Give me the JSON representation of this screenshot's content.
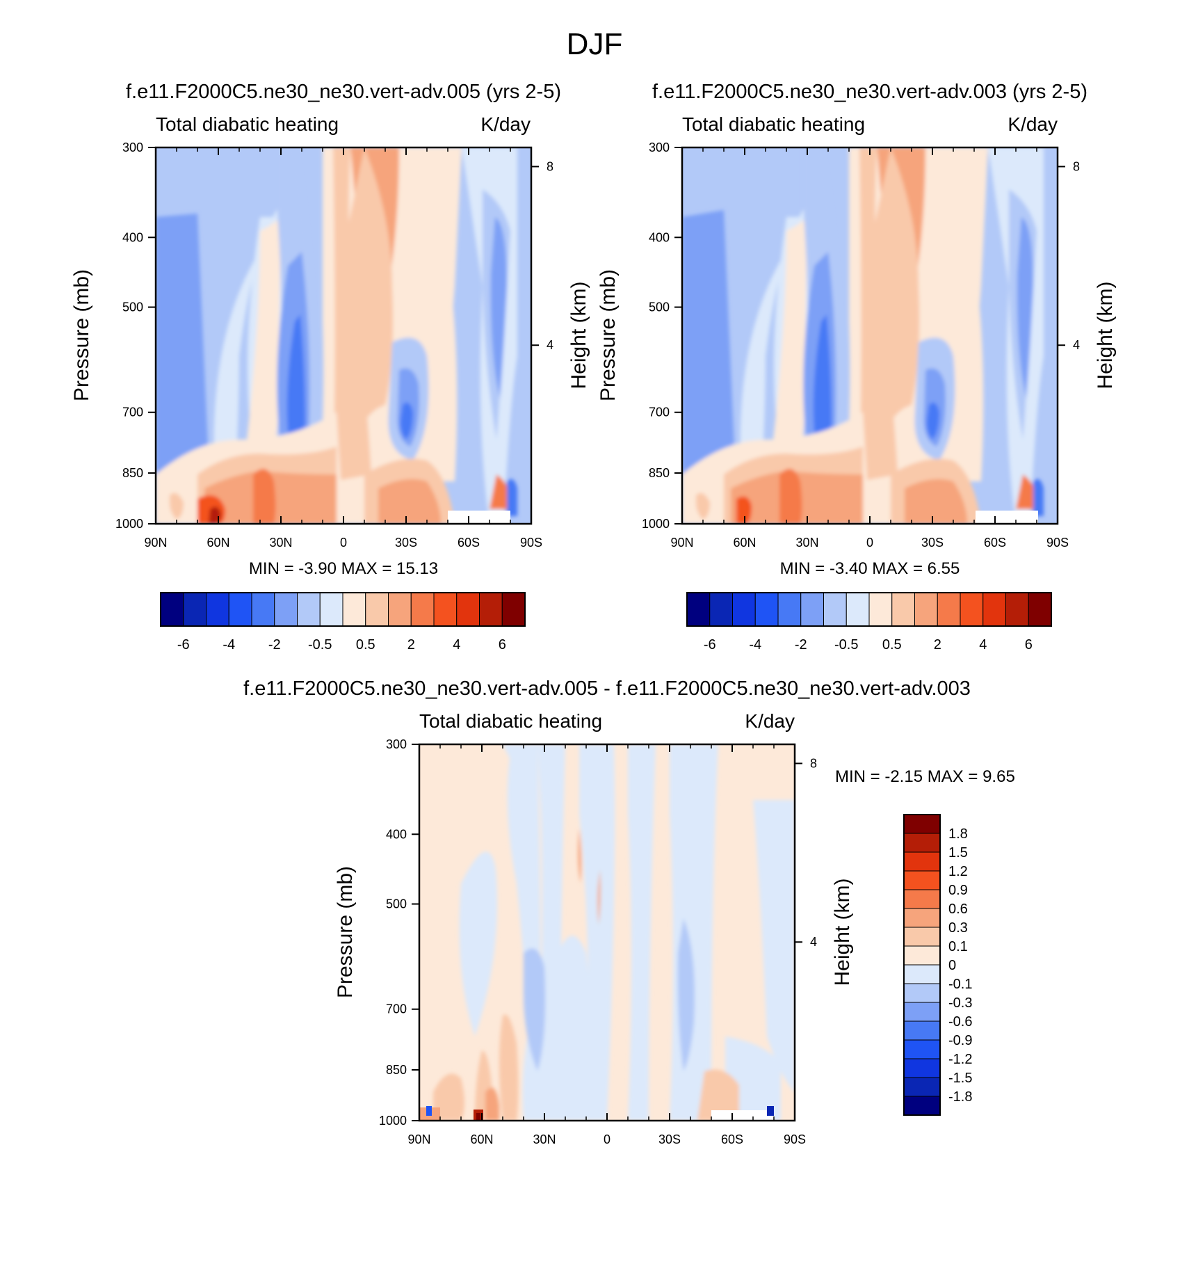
{
  "figure_title": "DJF",
  "panels": [
    {
      "title": "f.e11.F2000C5.ne30_ne30.vert-adv.005 (yrs 2-5)",
      "left_string": "Total diabatic heating",
      "right_string": "K/day",
      "ylabel": "Pressure (mb)",
      "ylabel_right": "Height (km)",
      "stats": "MIN =  -3.90  MAX =  15.13",
      "colorbar": "horizontal"
    },
    {
      "title": "f.e11.F2000C5.ne30_ne30.vert-adv.003 (yrs 2-5)",
      "left_string": "Total diabatic heating",
      "right_string": "K/day",
      "ylabel": "Pressure (mb)",
      "ylabel_right": "Height (km)",
      "stats": "MIN =  -3.40  MAX =   6.55",
      "colorbar": "horizontal"
    },
    {
      "title": "f.e11.F2000C5.ne30_ne30.vert-adv.005 - f.e11.F2000C5.ne30_ne30.vert-adv.003",
      "left_string": "Total diabatic heating",
      "right_string": "K/day",
      "ylabel": "Pressure (mb)",
      "ylabel_right": "Height (km)",
      "stats": "MIN =  -2.15  MAX =   9.65",
      "colorbar": "vertical"
    }
  ],
  "axes": {
    "x_ticks": [
      "90N",
      "60N",
      "30N",
      "0",
      "30S",
      "60S",
      "90S"
    ],
    "x_values": [
      90,
      60,
      30,
      0,
      -30,
      -60,
      -90
    ],
    "y_ticks": [
      "300",
      "400",
      "500",
      "700",
      "850",
      "1000"
    ],
    "y_values": [
      300,
      400,
      500,
      700,
      850,
      1000
    ],
    "y_scale": "log",
    "y_reversed": true,
    "height_ticks": [
      "8",
      "4"
    ],
    "height_values": [
      8,
      4
    ]
  },
  "colorbars": {
    "abs": {
      "colors": [
        "#00007f",
        "#0a26b4",
        "#1036e0",
        "#1f54f5",
        "#4779f5",
        "#7da0f6",
        "#b2c9f8",
        "#dce9fb",
        "#fde9d9",
        "#f9c9aa",
        "#f6a47c",
        "#f57a4a",
        "#f4521f",
        "#e2340d",
        "#b41e07",
        "#7f0000"
      ],
      "labels": [
        "-6",
        "-4",
        "-2",
        "-0.5",
        "0.5",
        "2",
        "4",
        "6"
      ]
    },
    "diff": {
      "colors": [
        "#7f0000",
        "#b41e07",
        "#e2340d",
        "#f4521f",
        "#f57a4a",
        "#f6a47c",
        "#f9c9aa",
        "#fde9d9",
        "#dce9fb",
        "#b2c9f8",
        "#7da0f6",
        "#4779f5",
        "#1f54f5",
        "#1036e0",
        "#0a26b4",
        "#00007f"
      ],
      "labels": [
        "1.8",
        "1.5",
        "1.2",
        "0.9",
        "0.6",
        "0.3",
        "0.1",
        "0",
        "-0.1",
        "-0.3",
        "-0.6",
        "-0.9",
        "-1.2",
        "-1.5",
        "-1.8"
      ]
    }
  },
  "chart_data": [
    {
      "type": "heatmap",
      "title": "f.e11.F2000C5.ne30_ne30.vert-adv.005 (yrs 2-5)",
      "variable": "Total diabatic heating",
      "units": "K/day",
      "season": "DJF",
      "x": "latitude 90N to 90S",
      "y": "pressure 300 to 1000 mb (log)",
      "min": -3.9,
      "max": 15.13,
      "levels": [
        -6,
        -5,
        -4,
        -3,
        -2,
        -1,
        -0.5,
        0,
        0.5,
        1,
        2,
        3,
        4,
        5,
        6
      ]
    },
    {
      "type": "heatmap",
      "title": "f.e11.F2000C5.ne30_ne30.vert-adv.003 (yrs 2-5)",
      "variable": "Total diabatic heating",
      "units": "K/day",
      "season": "DJF",
      "x": "latitude 90N to 90S",
      "y": "pressure 300 to 1000 mb (log)",
      "min": -3.4,
      "max": 6.55,
      "levels": [
        -6,
        -5,
        -4,
        -3,
        -2,
        -1,
        -0.5,
        0,
        0.5,
        1,
        2,
        3,
        4,
        5,
        6
      ]
    },
    {
      "type": "heatmap",
      "title": "f.e11.F2000C5.ne30_ne30.vert-adv.005 - f.e11.F2000C5.ne30_ne30.vert-adv.003",
      "variable": "Total diabatic heating",
      "units": "K/day",
      "season": "DJF",
      "x": "latitude 90N to 90S",
      "y": "pressure 300 to 1000 mb (log)",
      "min": -2.15,
      "max": 9.65,
      "levels": [
        1.8,
        1.5,
        1.2,
        0.9,
        0.6,
        0.3,
        0.1,
        0,
        -0.1,
        -0.3,
        -0.6,
        -0.9,
        -1.2,
        -1.5,
        -1.8
      ]
    }
  ]
}
